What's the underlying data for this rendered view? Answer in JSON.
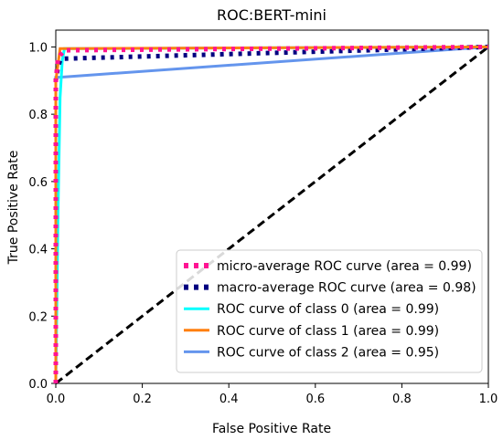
{
  "chart_data": {
    "type": "line",
    "title": "ROC:BERT-mini",
    "xlabel": "False Positive Rate",
    "ylabel": "True Positive Rate",
    "xlim": [
      0.0,
      1.0
    ],
    "ylim": [
      0.0,
      1.05
    ],
    "x_ticks": [
      "0.0",
      "0.2",
      "0.4",
      "0.6",
      "0.8",
      "1.0"
    ],
    "y_ticks": [
      "0.0",
      "0.2",
      "0.4",
      "0.6",
      "0.8",
      "1.0"
    ],
    "grid": false,
    "legend_position": "lower-right",
    "series": [
      {
        "name": "micro-average ROC curve (area = 0.99)",
        "color": "#ff1493",
        "style": "dotted",
        "x": [
          0.0,
          0.0,
          0.005,
          0.01,
          0.02,
          1.0
        ],
        "y": [
          0.0,
          0.9,
          0.965,
          0.975,
          0.99,
          1.0
        ]
      },
      {
        "name": "macro-average ROC curve (area = 0.98)",
        "color": "#000080",
        "style": "dotted",
        "x": [
          0.0,
          0.0,
          0.005,
          0.01,
          0.015,
          1.0
        ],
        "y": [
          0.0,
          0.9,
          0.94,
          0.96,
          0.965,
          1.0
        ]
      },
      {
        "name": "ROC curve of class 0 (area = 0.99)",
        "color": "#00ffff",
        "style": "solid",
        "x": [
          0.0,
          0.005,
          0.01,
          0.015,
          0.02,
          1.0
        ],
        "y": [
          0.0,
          0.5,
          0.85,
          0.96,
          0.995,
          1.0
        ]
      },
      {
        "name": "ROC curve of class 1 (area = 0.99)",
        "color": "#ff7f0e",
        "style": "solid",
        "x": [
          0.0,
          0.0,
          0.01,
          1.0
        ],
        "y": [
          0.0,
          0.9,
          0.995,
          1.0
        ]
      },
      {
        "name": "ROC curve of class 2 (area = 0.95)",
        "color": "#6495ed",
        "style": "solid",
        "x": [
          0.0,
          0.0,
          0.01,
          1.0
        ],
        "y": [
          0.0,
          0.91,
          0.91,
          1.0
        ]
      },
      {
        "name": "",
        "color": "#000000",
        "style": "dashed",
        "x": [
          0.0,
          1.0
        ],
        "y": [
          0.0,
          1.0
        ]
      }
    ]
  }
}
